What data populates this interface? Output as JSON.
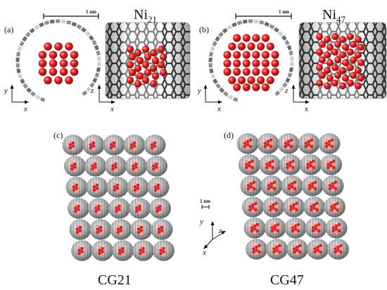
{
  "panels": {
    "a": {
      "label": "(a)",
      "species": "Ni",
      "subscript": "21",
      "scale": "1 nm"
    },
    "b": {
      "label": "(b)",
      "species": "Ni",
      "subscript": "47",
      "scale": "1 nm"
    },
    "c": {
      "label": "(c)",
      "caption": "CG21"
    },
    "d": {
      "label": "(d)",
      "caption": "CG47"
    }
  },
  "scale_center": "1 nm",
  "axes": {
    "x": "x",
    "y": "y",
    "z": "z"
  },
  "colors": {
    "atom": "#d81e1e",
    "atom_highlight": "#ff8a8a",
    "tube_dark": "#555555",
    "tube_light": "#bbbbbb",
    "tube_white": "#e8e8e8"
  }
}
